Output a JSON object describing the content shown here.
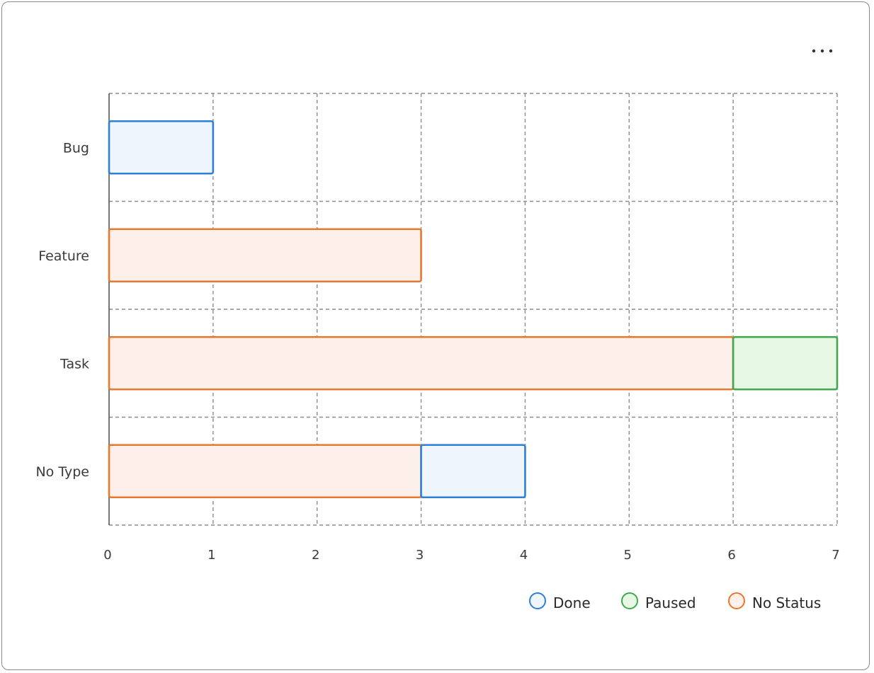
{
  "chart_data": {
    "type": "bar",
    "orientation": "horizontal",
    "stacked": true,
    "categories": [
      "Bug",
      "Feature",
      "Task",
      "No Type"
    ],
    "series": [
      {
        "name": "No Status",
        "values": [
          0,
          3,
          6,
          3
        ],
        "color": "#e8782e",
        "fill": "#fdf0ea"
      },
      {
        "name": "Done",
        "values": [
          1,
          0,
          0,
          1
        ],
        "color": "#2f7fd6",
        "fill": "#eef5fd"
      },
      {
        "name": "Paused",
        "values": [
          0,
          0,
          1,
          0
        ],
        "color": "#41a84c",
        "fill": "#e6f7e4"
      }
    ],
    "legend_order": [
      "Done",
      "Paused",
      "No Status"
    ],
    "xlim": [
      0,
      7
    ],
    "xticks": [
      0,
      1,
      2,
      3,
      4,
      5,
      6,
      7
    ],
    "grid": true,
    "grid_style": "dashed",
    "legend_position": "bottom-right",
    "title": "",
    "xlabel": "",
    "ylabel": ""
  },
  "toolbar": {
    "more_icon": "more-horizontal-icon"
  }
}
